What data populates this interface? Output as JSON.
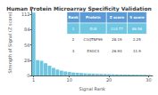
{
  "chart_data": {
    "type": "bar",
    "title": "Human Protein Microarray Specificity Validation",
    "xlabel": "Signal Rank",
    "ylabel": "Strength of Signal (Z score)",
    "x": [
      1,
      2,
      3,
      4,
      5,
      6,
      7,
      8,
      9,
      10,
      11,
      12,
      13,
      14,
      15,
      16,
      17,
      18,
      19,
      20,
      21,
      22,
      23,
      24,
      25,
      26,
      27,
      28,
      29,
      30
    ],
    "values": [
      114.77,
      28.19,
      26.93,
      22.5,
      18.0,
      14.0,
      11.0,
      9.0,
      7.5,
      6.5,
      5.5,
      5.0,
      4.5,
      4.0,
      3.7,
      3.4,
      3.1,
      2.9,
      2.7,
      2.5,
      2.3,
      2.1,
      2.0,
      1.9,
      1.8,
      1.7,
      1.6,
      1.5,
      1.4,
      1.3
    ],
    "color": "#6ec6e0",
    "xlim": [
      0.5,
      31
    ],
    "xticks": [
      1,
      10,
      20,
      30
    ],
    "ylim": [
      0,
      120
    ],
    "yticks": [
      0,
      28,
      56,
      84,
      112
    ],
    "grid": false,
    "table": {
      "columns": [
        "Rank",
        "Protein",
        "Z score",
        "S score"
      ],
      "rows": [
        [
          "1",
          "ELN",
          "114.77",
          "86.58"
        ],
        [
          "2",
          "C1QTNF99",
          "28.19",
          "2.25"
        ],
        [
          "3",
          "EXOC3",
          "26.93",
          "11.9"
        ]
      ],
      "header_color": "#5b9bd5",
      "row_colors": [
        "#6ec6e0",
        "#ffffff",
        "#ffffff"
      ]
    }
  }
}
